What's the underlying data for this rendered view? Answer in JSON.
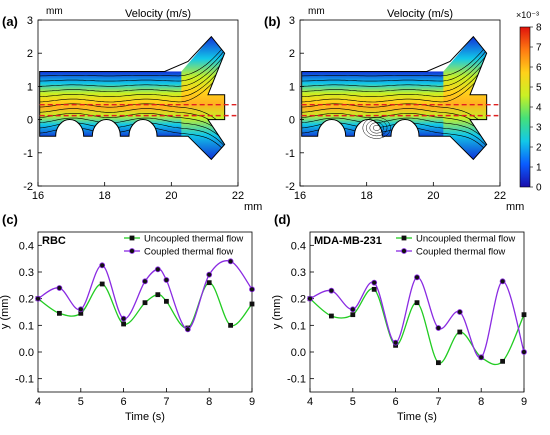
{
  "colors": {
    "uncoupled": "#22cc22",
    "coupled": "#8a2be2",
    "marker": "#111111",
    "dashed": "#e02020",
    "outline": "#000000"
  },
  "velocity_panels": [
    {
      "label": "(a)",
      "title": "Velocity (m/s)",
      "y_unit": "mm",
      "x_unit": "mm",
      "xlim": [
        16,
        22
      ],
      "ylim": [
        -2,
        3
      ],
      "xticks": [
        "16",
        "18",
        "20",
        "22"
      ],
      "yticks": [
        "3",
        "2",
        "1",
        "0",
        "-1",
        "-2"
      ],
      "vortex": false
    },
    {
      "label": "(b)",
      "title": "Velocity (m/s)",
      "y_unit": "mm",
      "x_unit": "mm",
      "xlim": [
        16,
        22
      ],
      "ylim": [
        -2,
        3
      ],
      "xticks": [
        "16",
        "18",
        "20",
        "22"
      ],
      "yticks": [
        "3",
        "2",
        "1",
        "0",
        "-1",
        "-2"
      ],
      "vortex": true
    }
  ],
  "colorbar": {
    "scale_label": "×10⁻³",
    "ticks": [
      "8",
      "7",
      "6",
      "5",
      "4",
      "3",
      "2",
      "1",
      "0"
    ],
    "stops": [
      "#1a0dab",
      "#0a5cff",
      "#12c8e8",
      "#44e07a",
      "#c9f025",
      "#ffd21a",
      "#ff7a12",
      "#e0120c"
    ]
  },
  "chart_data": [
    {
      "type": "line",
      "label": "(c)",
      "title": "RBC",
      "xlabel": "Time (s)",
      "ylabel": "y (mm)",
      "xlim": [
        4,
        9
      ],
      "ylim": [
        -0.15,
        0.45
      ],
      "xticks": [
        "4",
        "5",
        "6",
        "7",
        "8",
        "9"
      ],
      "yticks": [
        "0.4",
        "0.3",
        "0.2",
        "0.1",
        "0.0",
        "-0.1"
      ],
      "legend": "top-right",
      "series": [
        {
          "name": "Uncoupled thermal flow",
          "marker": "square",
          "x": [
            4.0,
            4.5,
            5.0,
            5.5,
            6.0,
            6.5,
            6.8,
            7.0,
            7.5,
            8.0,
            8.5,
            9.0
          ],
          "y": [
            0.2,
            0.145,
            0.145,
            0.255,
            0.105,
            0.185,
            0.215,
            0.19,
            0.09,
            0.26,
            0.1,
            0.18
          ]
        },
        {
          "name": "Coupled thermal flow",
          "marker": "circle",
          "x": [
            4.0,
            4.5,
            5.0,
            5.5,
            6.0,
            6.5,
            6.8,
            7.0,
            7.5,
            8.0,
            8.5,
            9.0
          ],
          "y": [
            0.2,
            0.24,
            0.16,
            0.325,
            0.125,
            0.265,
            0.31,
            0.27,
            0.085,
            0.29,
            0.34,
            0.235
          ]
        }
      ]
    },
    {
      "type": "line",
      "label": "(d)",
      "title": "MDA-MB-231",
      "xlabel": "Time (s)",
      "ylabel": "y (mm)",
      "xlim": [
        4,
        9
      ],
      "ylim": [
        -0.15,
        0.45
      ],
      "xticks": [
        "4",
        "5",
        "6",
        "7",
        "8",
        "9"
      ],
      "yticks": [
        "0.4",
        "0.3",
        "0.2",
        "0.1",
        "0.0",
        "-0.1"
      ],
      "legend": "top-right",
      "series": [
        {
          "name": "Uncoupled thermal flow",
          "marker": "square",
          "x": [
            4.0,
            4.5,
            5.0,
            5.5,
            6.0,
            6.5,
            7.0,
            7.5,
            8.0,
            8.5,
            9.0
          ],
          "y": [
            0.2,
            0.135,
            0.14,
            0.235,
            0.025,
            0.185,
            -0.04,
            0.075,
            -0.02,
            -0.035,
            0.14
          ]
        },
        {
          "name": "Coupled thermal flow",
          "marker": "circle",
          "x": [
            4.0,
            4.5,
            5.0,
            5.5,
            6.0,
            6.5,
            7.0,
            7.5,
            8.0,
            8.5,
            9.0
          ],
          "y": [
            0.2,
            0.23,
            0.16,
            0.26,
            0.035,
            0.28,
            0.09,
            0.15,
            -0.02,
            0.265,
            0.0
          ]
        }
      ]
    }
  ]
}
